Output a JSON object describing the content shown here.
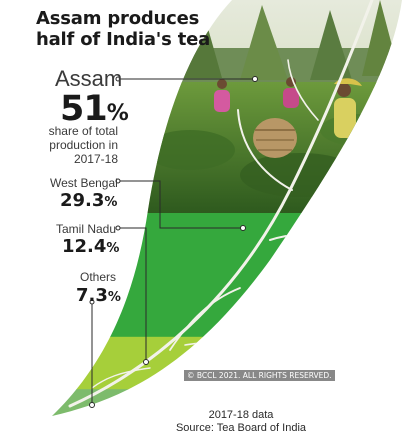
{
  "header": {
    "title_line1": "Assam produces",
    "title_line2": "half of India's tea"
  },
  "note": {
    "line1": "share of total",
    "line2": "production in",
    "line3": "2017-18"
  },
  "footer": {
    "source_line1": "2017-18 data",
    "source_line2": "Source: Tea Board of India",
    "copyright": "© BCCL 2021. ALL RIGHTS RESERVED."
  },
  "colors": {
    "assam": "#3a8a2a",
    "west_bengal": "#35a83d",
    "tamil_nadu": "#a6cf3a",
    "others": "#7dbb6c",
    "leaf_vein": "#f2f2ea",
    "leader_line": "#2a2a2a"
  },
  "chart_data": {
    "type": "bar",
    "title": "Assam produces half of India's tea",
    "unit": "%",
    "categories": [
      "Assam",
      "West Bengal",
      "Tamil Nadu",
      "Others"
    ],
    "values": [
      51,
      29.3,
      12.4,
      7.3
    ],
    "value_labels": [
      "51",
      "29.3",
      "12.4",
      "7.3"
    ],
    "stacked": true,
    "year": "2017-18"
  }
}
